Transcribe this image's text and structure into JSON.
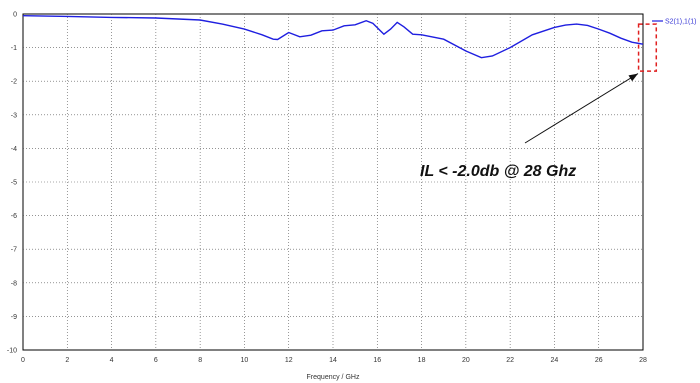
{
  "chart_data": {
    "type": "line",
    "xlabel": "Frequency / GHz",
    "ylabel": "",
    "xlim": [
      0,
      28
    ],
    "ylim": [
      -10,
      0
    ],
    "x_ticks": [
      0,
      2,
      4,
      6,
      8,
      10,
      12,
      14,
      16,
      18,
      20,
      22,
      24,
      26,
      28
    ],
    "y_ticks": [
      0,
      -1,
      -2,
      -3,
      -4,
      -5,
      -6,
      -7,
      -8,
      -9,
      -10
    ],
    "grid": true,
    "legend_position": "top-right",
    "series": [
      {
        "name": "S2(1),1(1)",
        "color": "#1f1fe0",
        "x": [
          0,
          2,
          4,
          6,
          8,
          9,
          10,
          10.8,
          11.3,
          11.5,
          12,
          12.5,
          13,
          13.5,
          14,
          14.5,
          15,
          15.5,
          15.8,
          16.3,
          16.6,
          16.9,
          17.2,
          17.6,
          18,
          19,
          20,
          20.7,
          21.2,
          22,
          23,
          24,
          24.5,
          25,
          25.5,
          26,
          26.5,
          27,
          27.5,
          28
        ],
        "y": [
          -0.05,
          -0.07,
          -0.1,
          -0.12,
          -0.18,
          -0.3,
          -0.45,
          -0.62,
          -0.75,
          -0.76,
          -0.55,
          -0.68,
          -0.63,
          -0.5,
          -0.48,
          -0.35,
          -0.32,
          -0.2,
          -0.28,
          -0.6,
          -0.45,
          -0.25,
          -0.38,
          -0.6,
          -0.62,
          -0.75,
          -1.1,
          -1.3,
          -1.25,
          -1.0,
          -0.62,
          -0.4,
          -0.33,
          -0.3,
          -0.34,
          -0.45,
          -0.57,
          -0.72,
          -0.84,
          -0.9
        ]
      }
    ],
    "annotation": {
      "text": "IL < -2.0db @ 28 Ghz",
      "arrow_to": [
        28,
        -1.0
      ],
      "highlight_box": {
        "x": [
          27.8,
          28.6
        ],
        "y": [
          -0.3,
          -1.7
        ],
        "color": "#e02020"
      }
    }
  }
}
